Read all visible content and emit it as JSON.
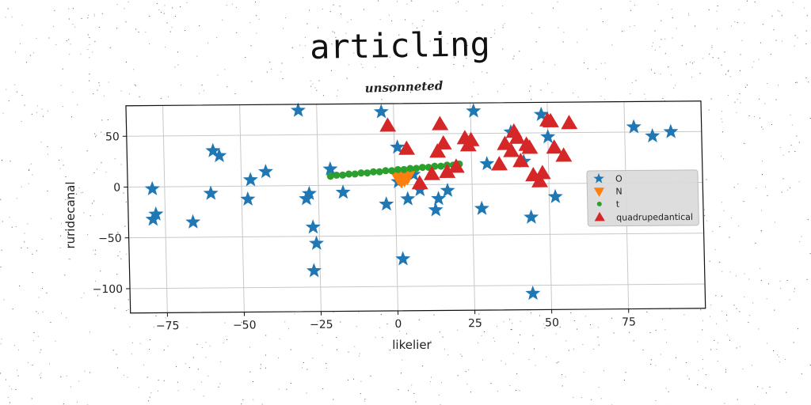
{
  "colors": {
    "series_O": "#1f77b4",
    "series_N": "#ff7f0e",
    "series_t": "#2ca02c",
    "series_quadrupedantical": "#d62728",
    "grid": "#c8c8c8",
    "legend_bg": "#d9d9d9"
  },
  "chart_data": {
    "type": "scatter",
    "title": "articling",
    "subtitle": "unsonneted",
    "xlabel": "likelier",
    "ylabel": "ruridecanal",
    "xlim": [
      -87,
      100
    ],
    "ylim": [
      -124,
      80
    ],
    "xticks": [
      -75,
      -50,
      -25,
      0,
      25,
      50,
      75
    ],
    "yticks": [
      -100,
      -50,
      0,
      50
    ],
    "xtick_labels": [
      "−75",
      "−50",
      "−25",
      "0",
      "25",
      "50",
      "75"
    ],
    "ytick_labels": [
      "−100",
      "−50",
      "0",
      "50"
    ],
    "grid": true,
    "legend_position": "right",
    "series": [
      {
        "name": "O",
        "marker": "star",
        "points": [
          [
            -31,
            74
          ],
          [
            -79,
            -2
          ],
          [
            -78,
            -27
          ],
          [
            -79,
            -32
          ],
          [
            -66,
            -35
          ],
          [
            -60,
            -7
          ],
          [
            -59,
            35
          ],
          [
            -57,
            30
          ],
          [
            -48,
            -13
          ],
          [
            -47,
            6
          ],
          [
            -42,
            14
          ],
          [
            -29,
            -13
          ],
          [
            -28,
            -8
          ],
          [
            -27,
            -41
          ],
          [
            -26,
            -57
          ],
          [
            -27,
            -84
          ],
          [
            -17,
            -7
          ],
          [
            -4,
            72
          ],
          [
            1,
            37
          ],
          [
            -3,
            -19
          ],
          [
            1,
            3
          ],
          [
            4,
            -14
          ],
          [
            2,
            -73
          ],
          [
            13,
            -25
          ],
          [
            14,
            -14
          ],
          [
            17,
            -6
          ],
          [
            26,
            72
          ],
          [
            30,
            20
          ],
          [
            28,
            -24
          ],
          [
            38,
            51
          ],
          [
            42,
            22
          ],
          [
            48,
            68
          ],
          [
            50,
            46
          ],
          [
            44,
            -33
          ],
          [
            44,
            -108
          ],
          [
            52,
            -13
          ],
          [
            78,
            55
          ],
          [
            84,
            46
          ],
          [
            90,
            50
          ],
          [
            -21,
            16
          ],
          [
            6,
            10
          ],
          [
            8,
            -5
          ]
        ]
      },
      {
        "name": "N",
        "marker": "triangle-down",
        "points": [
          [
            1,
            8
          ],
          [
            2,
            5
          ],
          [
            3,
            6
          ],
          [
            4,
            8
          ]
        ]
      },
      {
        "name": "t",
        "marker": "dot",
        "points": [
          [
            -21,
            9
          ],
          [
            -19,
            10
          ],
          [
            -17,
            10
          ],
          [
            -15,
            11
          ],
          [
            -13,
            11
          ],
          [
            -11,
            12
          ],
          [
            -9,
            12
          ],
          [
            -7,
            13
          ],
          [
            -5,
            13
          ],
          [
            -3,
            14
          ],
          [
            -1,
            14
          ],
          [
            1,
            15
          ],
          [
            3,
            15
          ],
          [
            5,
            16
          ],
          [
            7,
            16
          ],
          [
            9,
            17
          ],
          [
            11,
            17
          ],
          [
            13,
            18
          ],
          [
            15,
            18
          ],
          [
            17,
            19
          ],
          [
            19,
            19
          ],
          [
            21,
            20
          ]
        ]
      },
      {
        "name": "quadrupedantical",
        "marker": "triangle-up",
        "points": [
          [
            -2,
            58
          ],
          [
            4,
            35
          ],
          [
            8,
            1
          ],
          [
            12,
            10
          ],
          [
            14,
            32
          ],
          [
            15,
            59
          ],
          [
            16,
            40
          ],
          [
            17,
            12
          ],
          [
            20,
            17
          ],
          [
            23,
            45
          ],
          [
            24,
            38
          ],
          [
            25,
            43
          ],
          [
            34,
            19
          ],
          [
            36,
            39
          ],
          [
            38,
            32
          ],
          [
            39,
            51
          ],
          [
            40,
            45
          ],
          [
            41,
            22
          ],
          [
            43,
            38
          ],
          [
            44,
            35
          ],
          [
            45,
            8
          ],
          [
            47,
            2
          ],
          [
            48,
            10
          ],
          [
            50,
            62
          ],
          [
            51,
            61
          ],
          [
            52,
            35
          ],
          [
            55,
            27
          ],
          [
            57,
            59
          ]
        ]
      }
    ]
  }
}
